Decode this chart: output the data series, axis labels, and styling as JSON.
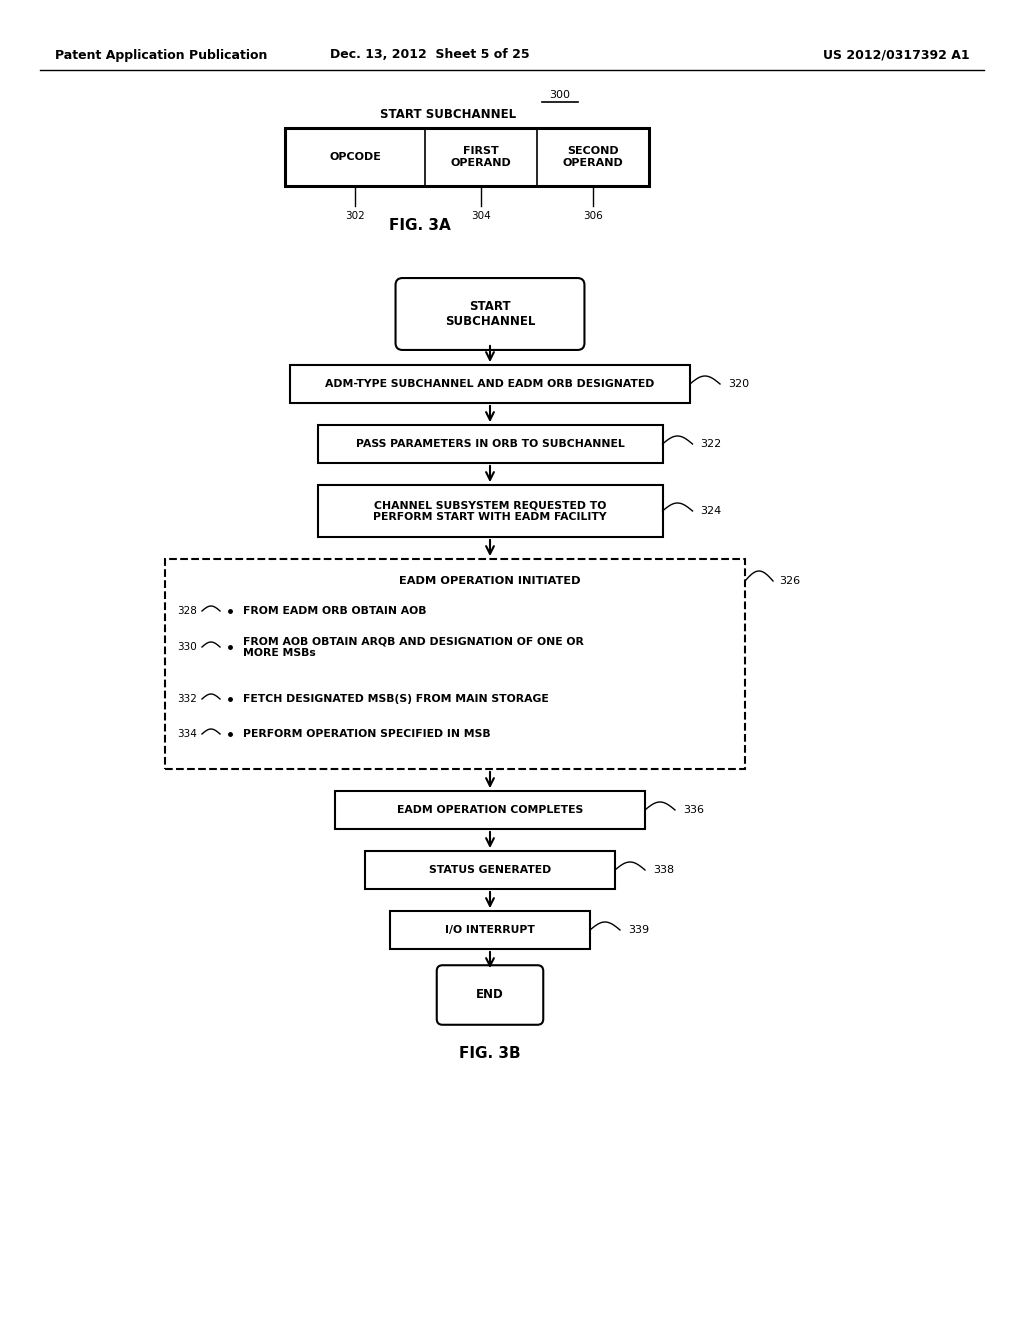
{
  "bg_color": "#ffffff",
  "header_left": "Patent Application Publication",
  "header_mid": "Dec. 13, 2012  Sheet 5 of 25",
  "header_right": "US 2012/0317392 A1",
  "fig3a_label": "FIG. 3A",
  "fig3b_label": "FIG. 3B",
  "fig3a_title": "START SUBCHANNEL",
  "fig3a_ref": "300",
  "fig3a_cells": [
    "OPCODE",
    "FIRST\nOPERAND",
    "SECOND\nOPERAND"
  ],
  "fig3a_cell_refs": [
    "302",
    "304",
    "306"
  ],
  "header_fontsize": 9,
  "body_fontsize": 8,
  "small_fontsize": 7.5,
  "ref_fontsize": 8
}
